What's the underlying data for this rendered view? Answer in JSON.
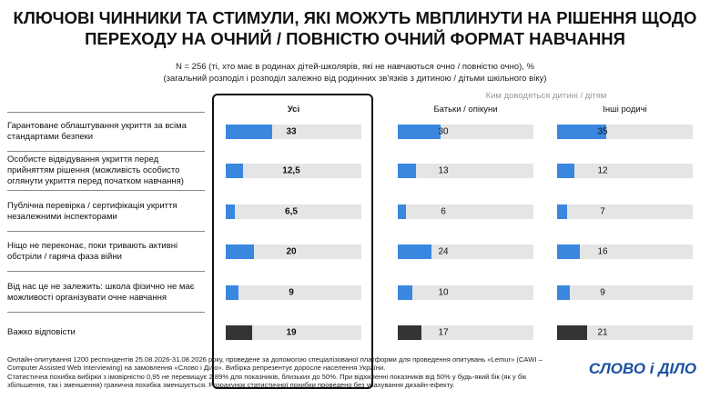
{
  "chart_data": {
    "type": "bar",
    "orientation": "horizontal",
    "title": "КЛЮЧОВІ ЧИННИКИ ТА СТИМУЛИ, ЯКІ МОЖУТЬ МВПЛИНУТИ НА РІШЕННЯ ЩОДО ПЕРЕХОДУ НА ОЧНИЙ / ПОВНІСТЮ ОЧНИЙ ФОРМАТ НАВЧАННЯ",
    "subtitle": [
      "N = 256 (ті, хто має в родинах дітей-школярів, які не навчаються очно / повністю очно), %",
      "(загальний розподіл і розподіл залежно від родинних зв'язків з дитиною / дітьми шкільного віку)"
    ],
    "group_label": "Ким доводяться дитині / дітям",
    "categories": [
      "Гарантоване облаштування укриття за всіма стандартами безпеки",
      "Особисте відвідування укриття перед прийняттям рішення (можливість особисто оглянути укриття перед початком навчання)",
      "Публічна перевірка / сертифікація укриття незалежними інспекторами",
      "Ніщо не переконає, поки тривають активні обстріли / гаряча фаза війни",
      "Від нас це не залежить: школа фізично не має можливості організувати очне навчання",
      "Важко відповісти"
    ],
    "bar_colors": [
      "#3a87e0",
      "#3a87e0",
      "#3a87e0",
      "#3a87e0",
      "#3a87e0",
      "#333333"
    ],
    "xlim": [
      0,
      100
    ],
    "series": [
      {
        "name": "Усі",
        "values": [
          33,
          12.5,
          6.5,
          20,
          9,
          19
        ],
        "value_labels": [
          "33",
          "12,5",
          "6,5",
          "20",
          "9",
          "19"
        ]
      },
      {
        "name": "Батьки / опікуни",
        "values": [
          30,
          13,
          6,
          24,
          10,
          17
        ]
      },
      {
        "name": "Інші родичі",
        "values": [
          35,
          12,
          7,
          16,
          9,
          21
        ]
      }
    ],
    "footer": [
      "Онлайн-опитування 1200 респондентів 25.08.2026-31.08.2026 року, проведене за допомогою спеціалізованої платформи для проведення опитувань «Lemur» (CAWI – Computer Assisted Web Interviewing) на замовлення «Слово і Діло». Вибірка репрезентує доросле населення України.",
      "Статистична похибка вибірки з імовірністю 0,95 не перевищує 2,89% для показників, близьких до 50%. При відхиленні показників від 50% у будь-який бік (як у бік збільшення, так і зменшення) гранична похибка зменшується. Розрахунок статистичної похибки проведено без урахування дизайн-ефекту."
    ],
    "logo": "СЛОВО і ДІЛО"
  }
}
